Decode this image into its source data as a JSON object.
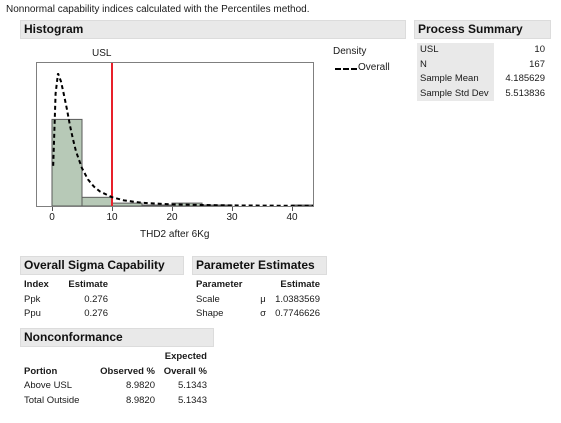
{
  "note": "Nonnormal capability indices calculated with the Percentiles method.",
  "histogram": {
    "header": "Histogram",
    "usl_label": "USL",
    "legend_title": "Density",
    "legend_entry": "Overall",
    "xlabel": "THD2 after 6Kg",
    "xticks": [
      "0",
      "10",
      "20",
      "30",
      "40"
    ]
  },
  "process_summary": {
    "header": "Process Summary",
    "rows": [
      {
        "label": "USL",
        "value": "10"
      },
      {
        "label": "N",
        "value": "167"
      },
      {
        "label": "Sample Mean",
        "value": "4.185629"
      },
      {
        "label": "Sample Std Dev",
        "value": "5.513836"
      }
    ]
  },
  "overall_sigma": {
    "header": "Overall Sigma Capability",
    "columns": [
      "Index",
      "Estimate"
    ],
    "rows": [
      {
        "index": "Ppk",
        "estimate": "0.276"
      },
      {
        "index": "Ppu",
        "estimate": "0.276"
      }
    ]
  },
  "parameter_estimates": {
    "header": "Parameter Estimates",
    "columns": [
      "Parameter",
      "Estimate"
    ],
    "rows": [
      {
        "parameter": "Scale",
        "symbol": "μ",
        "estimate": "1.0383569"
      },
      {
        "parameter": "Shape",
        "symbol": "σ",
        "estimate": "0.7746626"
      }
    ]
  },
  "nonconformance": {
    "header": "Nonconformance",
    "columns": [
      "Portion",
      "Observed %",
      "Expected",
      "Overall %"
    ],
    "rows": [
      {
        "portion": "Above USL",
        "observed": "8.9820",
        "expected": "5.1343"
      },
      {
        "portion": "Total Outside",
        "observed": "8.9820",
        "expected": "5.1343"
      }
    ]
  },
  "colors": {
    "bar_fill": "#b7c9b7",
    "bar_stroke": "#5a5a5a",
    "usl_line": "#e8202a",
    "density": "#000000",
    "header_bg": "#e9e9e9"
  },
  "chart_data": {
    "type": "bar",
    "x": [
      0,
      5,
      10,
      15,
      20,
      25,
      30,
      35,
      40
    ],
    "bins": [
      [
        0,
        5
      ],
      [
        5,
        10
      ],
      [
        10,
        15
      ],
      [
        15,
        20
      ],
      [
        20,
        25
      ],
      [
        25,
        30
      ],
      [
        30,
        35
      ],
      [
        35,
        40
      ],
      [
        40,
        45
      ]
    ],
    "values": [
      0.1078,
      0.0108,
      0.0036,
      0.0012,
      0.0036,
      0.0012,
      0.0,
      0.0,
      0.0012
    ],
    "usl": 10,
    "xlim": [
      -2.5,
      43.5
    ],
    "ylim": [
      0,
      0.178
    ],
    "density_curve": {
      "name": "Overall",
      "x": [
        0.2,
        0.6,
        1.0,
        1.5,
        2.0,
        2.5,
        3.0,
        3.5,
        4.0,
        5.0,
        6.0,
        7.0,
        8.0,
        10.0,
        12.0,
        15.0,
        20.0,
        25.0,
        30.0,
        35.0,
        40.0,
        45.0
      ],
      "y": [
        0.05,
        0.14,
        0.165,
        0.155,
        0.138,
        0.12,
        0.1,
        0.083,
        0.068,
        0.047,
        0.033,
        0.024,
        0.018,
        0.011,
        0.007,
        0.004,
        0.002,
        0.0012,
        0.0008,
        0.0005,
        0.0003,
        0.0002
      ]
    },
    "xlabel": "THD2 after 6Kg",
    "legend": "top-right"
  }
}
